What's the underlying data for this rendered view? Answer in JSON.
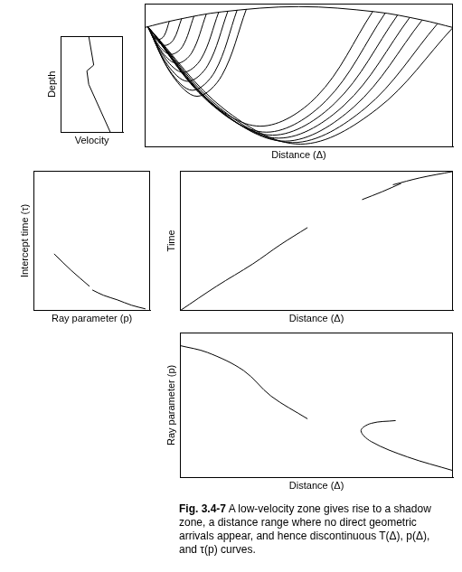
{
  "chart_data": [
    {
      "type": "line",
      "x_label": "Velocity",
      "y_label": "Depth",
      "xlim": [
        0,
        10
      ],
      "ylim": [
        10,
        0
      ],
      "tick_labels": false,
      "grid": false,
      "color": "#000000",
      "series": [
        {
          "x": [
            4.5,
            5.3,
            4.2,
            4.5,
            8.0
          ],
          "values": [
            0,
            3.0,
            3.6,
            5.0,
            10
          ]
        }
      ]
    },
    {
      "type": "spline",
      "x_label": "Distance (Δ)",
      "xlim": [
        0,
        100
      ],
      "ylim": [
        40,
        -8
      ],
      "tick_labels": false,
      "grid": false,
      "color": "#000000",
      "series": [
        {
          "x": [
            0,
            10,
            25,
            50,
            75,
            90,
            100
          ],
          "values": [
            0,
            -2.52,
            -5.25,
            -7,
            -5.25,
            -2.52,
            0
          ]
        },
        {
          "x": [
            1,
            2.8,
            4.5,
            6.3,
            8
          ],
          "values": [
            -0.3,
            2.8,
            4,
            2.8,
            -2.1
          ]
        },
        {
          "x": [
            1,
            3.8,
            6.5,
            9.3,
            12
          ],
          "values": [
            -0.3,
            4.2,
            6,
            4.2,
            -3
          ]
        },
        {
          "x": [
            1,
            4.8,
            8.5,
            12.3,
            16
          ],
          "values": [
            -0.3,
            6.3,
            9,
            6.3,
            -3.8
          ]
        },
        {
          "x": [
            1,
            5.8,
            10.5,
            15.3,
            20
          ],
          "values": [
            -0.3,
            8.4,
            12,
            8.4,
            -4.5
          ]
        },
        {
          "x": [
            1,
            6.8,
            12.5,
            18.3,
            24
          ],
          "values": [
            -0.3,
            10.5,
            15,
            10.5,
            -5.1
          ]
        },
        {
          "x": [
            1,
            7.5,
            14,
            20.5,
            27
          ],
          "values": [
            -0.3,
            12.6,
            18,
            12.6,
            -5.5
          ]
        },
        {
          "x": [
            1,
            8.3,
            15.5,
            22.8,
            30
          ],
          "values": [
            -0.3,
            14.7,
            21,
            14.7,
            -5.9
          ]
        },
        {
          "x": [
            1,
            9,
            17,
            25,
            33
          ],
          "values": [
            -0.3,
            16.1,
            23,
            16.1,
            -6.2
          ]
        },
        {
          "x": [
            1,
            19.3,
            37.5,
            55.8,
            74
          ],
          "values": [
            -0.3,
            23.1,
            33,
            23.1,
            -5.4
          ]
        },
        {
          "x": [
            1,
            20.3,
            39.5,
            58.8,
            78
          ],
          "values": [
            -0.3,
            24.5,
            35,
            24.5,
            -4.8
          ]
        },
        {
          "x": [
            1,
            21.3,
            41.5,
            61.8,
            82
          ],
          "values": [
            -0.3,
            25.2,
            36,
            25.2,
            -4.1
          ]
        },
        {
          "x": [
            1,
            22.3,
            43.5,
            64.8,
            86
          ],
          "values": [
            -0.3,
            25.9,
            37,
            25.9,
            -3.4
          ]
        },
        {
          "x": [
            1,
            23.3,
            45.5,
            67.8,
            90
          ],
          "values": [
            -0.3,
            26.6,
            38,
            26.6,
            -2.5
          ]
        },
        {
          "x": [
            1,
            24.5,
            48,
            71.5,
            95
          ],
          "values": [
            -0.3,
            27,
            38.5,
            27,
            -1.3
          ]
        },
        {
          "x": [
            1,
            25.8,
            50.5,
            75.3,
            100
          ],
          "values": [
            -0.3,
            27.3,
            39,
            27.3,
            0
          ]
        }
      ]
    },
    {
      "type": "spline",
      "x_label": "Ray parameter (p)",
      "y_label": "Intercept time (τ)",
      "xlim": [
        0,
        10
      ],
      "ylim": [
        0,
        10
      ],
      "tick_labels": false,
      "grid": false,
      "color": "#000000",
      "series": [
        {
          "x": [
            1.76,
            3.2,
            4.8
          ],
          "values": [
            4.06,
            2.9,
            1.74
          ]
        },
        {
          "x": [
            5.04,
            6.0,
            7.2,
            8.4,
            9.6
          ],
          "values": [
            1.48,
            1.1,
            0.77,
            0.39,
            0.13
          ]
        }
      ]
    },
    {
      "type": "spline",
      "x_label": "Distance (Δ)",
      "y_label": "Time",
      "xlim": [
        0,
        10
      ],
      "ylim": [
        0,
        10
      ],
      "tick_labels": false,
      "grid": false,
      "color": "#000000",
      "series": [
        {
          "x": [
            0,
            1.33,
            2.67,
            3.67,
            4.67
          ],
          "values": [
            0,
            1.74,
            3.35,
            4.71,
            5.94
          ]
        },
        {
          "x": [
            6.67,
            7.4,
            8.1
          ],
          "values": [
            7.94,
            8.5,
            9.1
          ]
        },
        {
          "x": [
            7.8,
            8.8,
            10
          ],
          "values": [
            9.0,
            9.5,
            9.95
          ]
        }
      ]
    },
    {
      "type": "spline",
      "x_label": "Distance (Δ)",
      "y_label": "Ray parameter (p)",
      "xlim": [
        0,
        10
      ],
      "ylim": [
        0,
        10
      ],
      "tick_labels": false,
      "grid": false,
      "color": "#000000",
      "series": [
        {
          "x": [
            0,
            1,
            2.33,
            3.33,
            4.67
          ],
          "values": [
            9.1,
            8.63,
            7.38,
            5.63,
            4.06
          ]
        },
        {
          "x": [
            7.9,
            7.0,
            6.63,
            7.0,
            8.33,
            10
          ],
          "values": [
            3.94,
            3.75,
            3.25,
            2.5,
            1.44,
            0.5
          ]
        }
      ]
    }
  ],
  "caption": {
    "label": "Fig. 3.4-7",
    "text": "A low-velocity zone gives rise to a shadow zone, a distance range where no direct geometric arrivals appear, and hence discontinuous T(Δ), p(Δ), and τ(p) curves."
  }
}
